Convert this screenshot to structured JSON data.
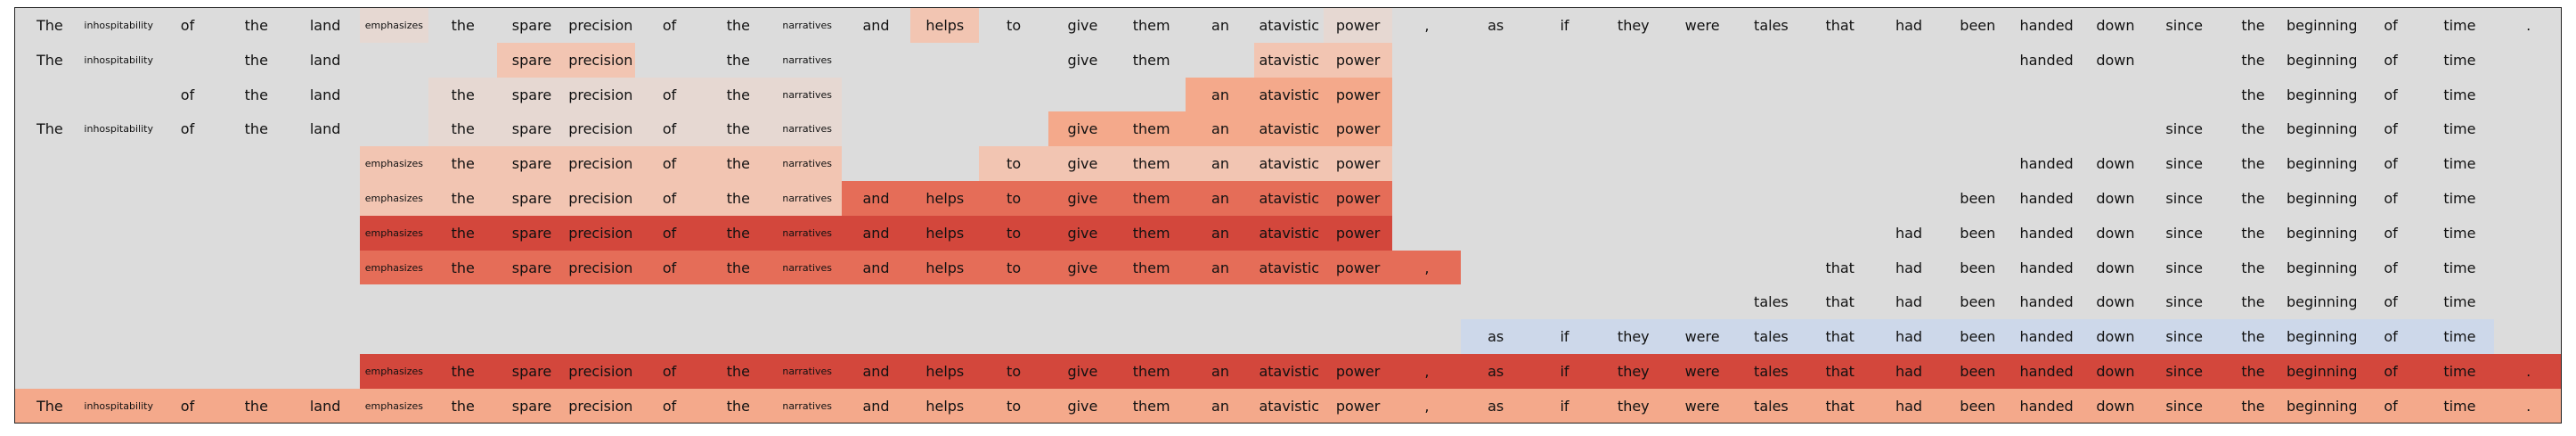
{
  "tokens": [
    "The",
    "inhospitability",
    "of",
    "the",
    "land",
    "emphasizes",
    "the",
    "spare",
    "precision",
    "of",
    "the",
    "narratives",
    "and",
    "helps",
    "to",
    "give",
    "them",
    "an",
    "atavistic",
    "power",
    ",",
    "as",
    "if",
    "they",
    "were",
    "tales",
    "that",
    "had",
    "been",
    "handed",
    "down",
    "since",
    "the",
    "beginning",
    "of",
    "time",
    "."
  ],
  "palette": {
    "gray": "#dcdcdc",
    "c1": "#e6d8d2",
    "c2": "#f2c5b2",
    "c3": "#f4a98b",
    "c4": "#e56d58",
    "c5": "#d3473c",
    "blue": "#cdd8ea"
  },
  "rows": [
    {
      "visible": [
        1,
        1,
        1,
        1,
        1,
        1,
        1,
        1,
        1,
        1,
        1,
        1,
        1,
        1,
        1,
        1,
        1,
        1,
        1,
        1,
        1,
        1,
        1,
        1,
        1,
        1,
        1,
        1,
        1,
        1,
        1,
        1,
        1,
        1,
        1,
        1,
        1
      ],
      "colors": [
        "gray",
        "gray",
        "gray",
        "gray",
        "gray",
        "c1",
        "gray",
        "gray",
        "gray",
        "gray",
        "gray",
        "gray",
        "gray",
        "c2",
        "gray",
        "gray",
        "gray",
        "gray",
        "gray",
        "c1",
        "gray",
        "gray",
        "gray",
        "gray",
        "gray",
        "gray",
        "gray",
        "gray",
        "gray",
        "gray",
        "gray",
        "gray",
        "gray",
        "gray",
        "gray",
        "gray",
        "gray"
      ]
    },
    {
      "visible": [
        1,
        1,
        0,
        1,
        1,
        0,
        0,
        1,
        1,
        0,
        1,
        1,
        0,
        0,
        0,
        1,
        1,
        0,
        1,
        1,
        0,
        0,
        0,
        0,
        0,
        0,
        0,
        0,
        0,
        1,
        1,
        0,
        1,
        1,
        1,
        1,
        0
      ],
      "colors": [
        "gray",
        "gray",
        "gray",
        "gray",
        "gray",
        "gray",
        "gray",
        "c2",
        "c2",
        "gray",
        "gray",
        "gray",
        "gray",
        "gray",
        "gray",
        "gray",
        "gray",
        "gray",
        "c2",
        "c2",
        "gray",
        "gray",
        "gray",
        "gray",
        "gray",
        "gray",
        "gray",
        "gray",
        "gray",
        "gray",
        "gray",
        "gray",
        "gray",
        "gray",
        "gray",
        "gray",
        "gray"
      ]
    },
    {
      "visible": [
        0,
        0,
        1,
        1,
        1,
        0,
        1,
        1,
        1,
        1,
        1,
        1,
        0,
        0,
        0,
        0,
        0,
        1,
        1,
        1,
        0,
        0,
        0,
        0,
        0,
        0,
        0,
        0,
        0,
        0,
        0,
        0,
        1,
        1,
        1,
        1,
        0
      ],
      "colors": [
        "gray",
        "gray",
        "gray",
        "gray",
        "gray",
        "gray",
        "c1",
        "c1",
        "c1",
        "c1",
        "c1",
        "c1",
        "gray",
        "gray",
        "gray",
        "gray",
        "gray",
        "c3",
        "c3",
        "c3",
        "gray",
        "gray",
        "gray",
        "gray",
        "gray",
        "gray",
        "gray",
        "gray",
        "gray",
        "gray",
        "gray",
        "gray",
        "gray",
        "gray",
        "gray",
        "gray",
        "gray"
      ]
    },
    {
      "visible": [
        1,
        1,
        1,
        1,
        1,
        0,
        1,
        1,
        1,
        1,
        1,
        1,
        0,
        0,
        0,
        1,
        1,
        1,
        1,
        1,
        0,
        0,
        0,
        0,
        0,
        0,
        0,
        0,
        0,
        0,
        0,
        1,
        1,
        1,
        1,
        1,
        0
      ],
      "colors": [
        "gray",
        "gray",
        "gray",
        "gray",
        "gray",
        "gray",
        "c1",
        "c1",
        "c1",
        "c1",
        "c1",
        "c1",
        "gray",
        "gray",
        "gray",
        "c3",
        "c3",
        "c3",
        "c3",
        "c3",
        "gray",
        "gray",
        "gray",
        "gray",
        "gray",
        "gray",
        "gray",
        "gray",
        "gray",
        "gray",
        "gray",
        "gray",
        "gray",
        "gray",
        "gray",
        "gray",
        "gray"
      ]
    },
    {
      "visible": [
        0,
        0,
        0,
        0,
        0,
        1,
        1,
        1,
        1,
        1,
        1,
        1,
        0,
        0,
        1,
        1,
        1,
        1,
        1,
        1,
        0,
        0,
        0,
        0,
        0,
        0,
        0,
        0,
        0,
        1,
        1,
        1,
        1,
        1,
        1,
        1,
        0
      ],
      "colors": [
        "gray",
        "gray",
        "gray",
        "gray",
        "gray",
        "c2",
        "c2",
        "c2",
        "c2",
        "c2",
        "c2",
        "c2",
        "gray",
        "gray",
        "c2",
        "c2",
        "c2",
        "c2",
        "c2",
        "c2",
        "gray",
        "gray",
        "gray",
        "gray",
        "gray",
        "gray",
        "gray",
        "gray",
        "gray",
        "gray",
        "gray",
        "gray",
        "gray",
        "gray",
        "gray",
        "gray",
        "gray"
      ]
    },
    {
      "visible": [
        0,
        0,
        0,
        0,
        0,
        1,
        1,
        1,
        1,
        1,
        1,
        1,
        1,
        1,
        1,
        1,
        1,
        1,
        1,
        1,
        0,
        0,
        0,
        0,
        0,
        0,
        0,
        0,
        1,
        1,
        1,
        1,
        1,
        1,
        1,
        1,
        0
      ],
      "colors": [
        "gray",
        "gray",
        "gray",
        "gray",
        "gray",
        "c2",
        "c2",
        "c2",
        "c2",
        "c2",
        "c2",
        "c2",
        "c4",
        "c4",
        "c4",
        "c4",
        "c4",
        "c4",
        "c4",
        "c4",
        "gray",
        "gray",
        "gray",
        "gray",
        "gray",
        "gray",
        "gray",
        "gray",
        "gray",
        "gray",
        "gray",
        "gray",
        "gray",
        "gray",
        "gray",
        "gray",
        "gray"
      ]
    },
    {
      "visible": [
        0,
        0,
        0,
        0,
        0,
        1,
        1,
        1,
        1,
        1,
        1,
        1,
        1,
        1,
        1,
        1,
        1,
        1,
        1,
        1,
        0,
        0,
        0,
        0,
        0,
        0,
        0,
        1,
        1,
        1,
        1,
        1,
        1,
        1,
        1,
        1,
        0
      ],
      "colors": [
        "gray",
        "gray",
        "gray",
        "gray",
        "gray",
        "c5",
        "c5",
        "c5",
        "c5",
        "c5",
        "c5",
        "c5",
        "c5",
        "c5",
        "c5",
        "c5",
        "c5",
        "c5",
        "c5",
        "c5",
        "gray",
        "gray",
        "gray",
        "gray",
        "gray",
        "gray",
        "gray",
        "gray",
        "gray",
        "gray",
        "gray",
        "gray",
        "gray",
        "gray",
        "gray",
        "gray",
        "gray"
      ]
    },
    {
      "visible": [
        0,
        0,
        0,
        0,
        0,
        1,
        1,
        1,
        1,
        1,
        1,
        1,
        1,
        1,
        1,
        1,
        1,
        1,
        1,
        1,
        1,
        0,
        0,
        0,
        0,
        0,
        1,
        1,
        1,
        1,
        1,
        1,
        1,
        1,
        1,
        1,
        0
      ],
      "colors": [
        "gray",
        "gray",
        "gray",
        "gray",
        "gray",
        "c4",
        "c4",
        "c4",
        "c4",
        "c4",
        "c4",
        "c4",
        "c4",
        "c4",
        "c4",
        "c4",
        "c4",
        "c4",
        "c4",
        "c4",
        "c4",
        "gray",
        "gray",
        "gray",
        "gray",
        "gray",
        "gray",
        "gray",
        "gray",
        "gray",
        "gray",
        "gray",
        "gray",
        "gray",
        "gray",
        "gray",
        "gray"
      ]
    },
    {
      "visible": [
        0,
        0,
        0,
        0,
        0,
        0,
        0,
        0,
        0,
        0,
        0,
        0,
        0,
        0,
        0,
        0,
        0,
        0,
        0,
        0,
        0,
        0,
        0,
        0,
        0,
        1,
        1,
        1,
        1,
        1,
        1,
        1,
        1,
        1,
        1,
        1,
        0
      ],
      "colors": [
        "gray",
        "gray",
        "gray",
        "gray",
        "gray",
        "gray",
        "gray",
        "gray",
        "gray",
        "gray",
        "gray",
        "gray",
        "gray",
        "gray",
        "gray",
        "gray",
        "gray",
        "gray",
        "gray",
        "gray",
        "gray",
        "gray",
        "gray",
        "gray",
        "gray",
        "gray",
        "gray",
        "gray",
        "gray",
        "gray",
        "gray",
        "gray",
        "gray",
        "gray",
        "gray",
        "gray",
        "gray"
      ]
    },
    {
      "visible": [
        0,
        0,
        0,
        0,
        0,
        0,
        0,
        0,
        0,
        0,
        0,
        0,
        0,
        0,
        0,
        0,
        0,
        0,
        0,
        0,
        0,
        1,
        1,
        1,
        1,
        1,
        1,
        1,
        1,
        1,
        1,
        1,
        1,
        1,
        1,
        1,
        0
      ],
      "colors": [
        "gray",
        "gray",
        "gray",
        "gray",
        "gray",
        "gray",
        "gray",
        "gray",
        "gray",
        "gray",
        "gray",
        "gray",
        "gray",
        "gray",
        "gray",
        "gray",
        "gray",
        "gray",
        "gray",
        "gray",
        "gray",
        "blue",
        "blue",
        "blue",
        "blue",
        "blue",
        "blue",
        "blue",
        "blue",
        "blue",
        "blue",
        "blue",
        "blue",
        "blue",
        "blue",
        "blue",
        "gray"
      ]
    },
    {
      "visible": [
        0,
        0,
        0,
        0,
        0,
        1,
        1,
        1,
        1,
        1,
        1,
        1,
        1,
        1,
        1,
        1,
        1,
        1,
        1,
        1,
        1,
        1,
        1,
        1,
        1,
        1,
        1,
        1,
        1,
        1,
        1,
        1,
        1,
        1,
        1,
        1,
        1
      ],
      "colors": [
        "gray",
        "gray",
        "gray",
        "gray",
        "gray",
        "c5",
        "c5",
        "c5",
        "c5",
        "c5",
        "c5",
        "c5",
        "c5",
        "c5",
        "c5",
        "c5",
        "c5",
        "c5",
        "c5",
        "c5",
        "c5",
        "c5",
        "c5",
        "c5",
        "c5",
        "c5",
        "c5",
        "c5",
        "c5",
        "c5",
        "c5",
        "c5",
        "c5",
        "c5",
        "c5",
        "c5",
        "c5"
      ]
    },
    {
      "visible": [
        1,
        1,
        1,
        1,
        1,
        1,
        1,
        1,
        1,
        1,
        1,
        1,
        1,
        1,
        1,
        1,
        1,
        1,
        1,
        1,
        1,
        1,
        1,
        1,
        1,
        1,
        1,
        1,
        1,
        1,
        1,
        1,
        1,
        1,
        1,
        1,
        1
      ],
      "colors": [
        "c3",
        "c3",
        "c3",
        "c3",
        "c3",
        "c3",
        "c3",
        "c3",
        "c3",
        "c3",
        "c3",
        "c3",
        "c3",
        "c3",
        "c3",
        "c3",
        "c3",
        "c3",
        "c3",
        "c3",
        "c3",
        "c3",
        "c3",
        "c3",
        "c3",
        "c3",
        "c3",
        "c3",
        "c3",
        "c3",
        "c3",
        "c3",
        "c3",
        "c3",
        "c3",
        "c3",
        "c3"
      ]
    }
  ]
}
